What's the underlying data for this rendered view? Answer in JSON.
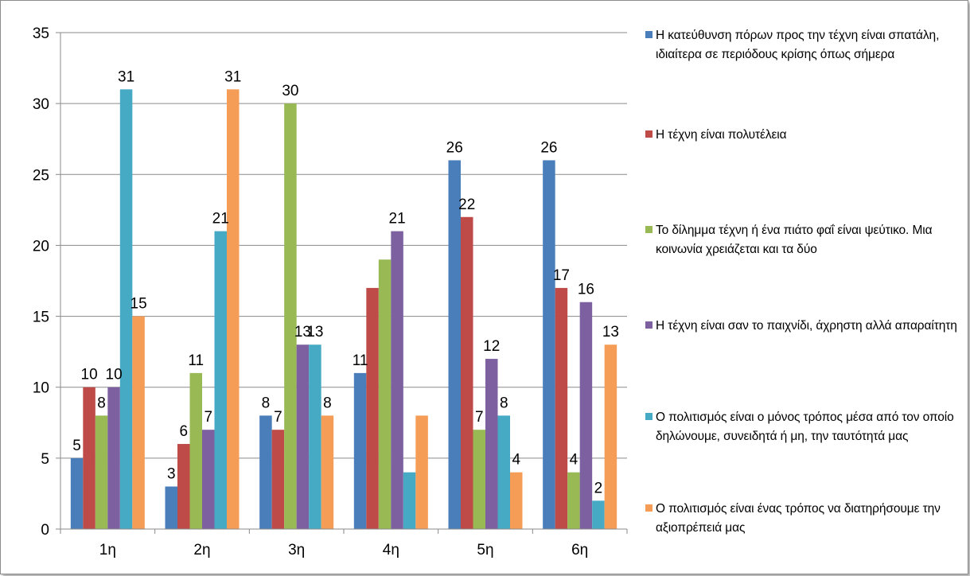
{
  "chart_data": {
    "type": "bar",
    "categories": [
      "1η",
      "2η",
      "3η",
      "4η",
      "5η",
      "6η"
    ],
    "ylim": [
      0,
      35
    ],
    "yticks": [
      0,
      5,
      10,
      15,
      20,
      25,
      30,
      35
    ],
    "grid": true,
    "legend_position": "right",
    "series": [
      {
        "name": "Η κατεύθυνση πόρων προς την τέχνη είναι σπατάλη, ιδιαίτερα σε περιόδους κρίσης όπως σήμερα",
        "color": "#4a7ebb",
        "values": [
          5,
          3,
          8,
          11,
          26,
          26
        ]
      },
      {
        "name": "Η τέχνη είναι πολυτέλεια",
        "color": "#be4b48",
        "values": [
          10,
          6,
          7,
          17,
          22,
          17
        ]
      },
      {
        "name": "Το δίλημμα τέχνη ή ένα πιάτο φαΐ είναι ψεύτικο. Μια κοινωνία χρειάζεται και τα δύο",
        "color": "#98b954",
        "values": [
          8,
          11,
          30,
          19,
          7,
          4
        ]
      },
      {
        "name": "Η τέχνη είναι σαν το παιχνίδι, άχρηστη αλλά απαραίτητη",
        "color": "#7d60a0",
        "values": [
          10,
          7,
          13,
          21,
          12,
          16
        ]
      },
      {
        "name": "Ο πολιτισμός είναι ο μόνος τρόπος μέσα από τον οποίο δηλώνουμε, συνειδητά ή μη, την ταυτότητά μας",
        "color": "#46aac5",
        "values": [
          31,
          21,
          13,
          4,
          8,
          2
        ]
      },
      {
        "name": "Ο πολιτισμός είναι ένας τρόπος να διατηρήσουμε την αξιοπρέπειά μας",
        "color": "#f59d56",
        "values": [
          15,
          31,
          8,
          8,
          4,
          13
        ]
      }
    ],
    "data_labels_shown": [
      [
        true,
        true,
        true,
        true,
        true,
        true
      ],
      [
        true,
        true,
        true,
        true,
        true,
        true
      ],
      [
        true,
        true,
        true,
        true,
        true,
        true
      ],
      [
        true,
        false,
        false,
        true,
        false,
        false
      ],
      [
        true,
        true,
        true,
        true,
        true,
        true
      ],
      [
        true,
        true,
        true,
        true,
        true,
        true
      ]
    ]
  }
}
